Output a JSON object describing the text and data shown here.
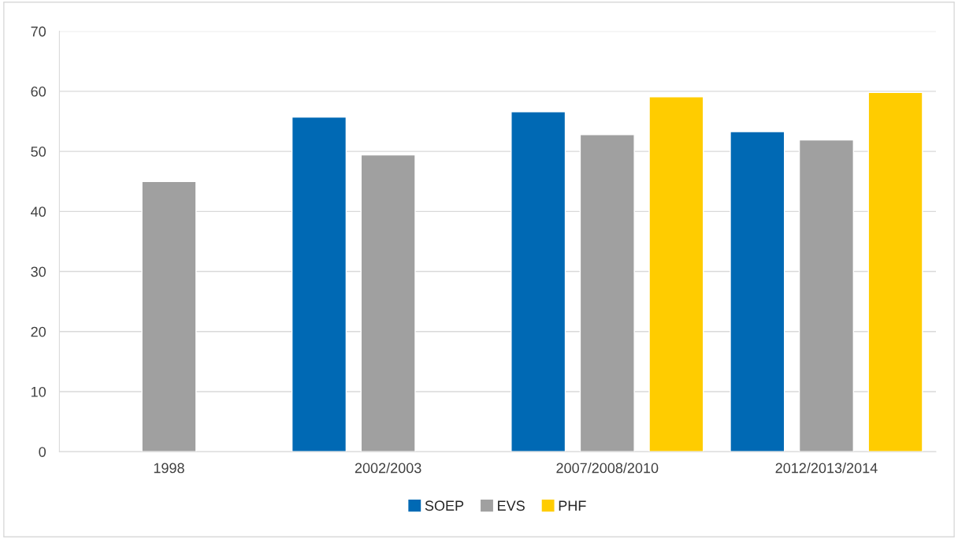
{
  "chart_data": {
    "type": "bar",
    "categories": [
      "1998",
      "2002/2003",
      "2007/2008/2010",
      "2012/2013/2014"
    ],
    "series": [
      {
        "name": "SOEP",
        "color": "#0069b4",
        "values": [
          null,
          55.7,
          56.6,
          53.3
        ]
      },
      {
        "name": "EVS",
        "color": "#a0a0a0",
        "values": [
          45.0,
          49.4,
          52.8,
          51.9
        ]
      },
      {
        "name": "PHF",
        "color": "#ffcc00",
        "values": [
          null,
          null,
          59.1,
          59.8
        ]
      }
    ],
    "ylim": [
      0,
      70
    ],
    "yticks": [
      0,
      10,
      20,
      30,
      40,
      50,
      60,
      70
    ],
    "grid": "y",
    "legend": "bottom"
  }
}
